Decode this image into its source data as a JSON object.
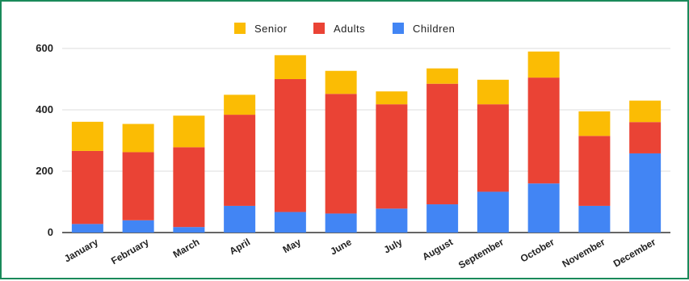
{
  "chart_data": {
    "type": "bar",
    "stacked": true,
    "categories": [
      "January",
      "February",
      "March",
      "April",
      "May",
      "June",
      "July",
      "August",
      "September",
      "October",
      "November",
      "December"
    ],
    "series": [
      {
        "name": "Children",
        "color": "#4285f4",
        "values": [
          28,
          40,
          18,
          87,
          67,
          62,
          78,
          92,
          133,
          160,
          87,
          258
        ]
      },
      {
        "name": "Adults",
        "color": "#ea4335",
        "values": [
          238,
          222,
          260,
          297,
          433,
          390,
          340,
          393,
          285,
          345,
          228,
          102
        ]
      },
      {
        "name": "Senior",
        "color": "#fbbc04",
        "values": [
          95,
          92,
          103,
          65,
          78,
          75,
          42,
          50,
          80,
          85,
          80,
          70
        ]
      }
    ],
    "legend_order": [
      "Senior",
      "Adults",
      "Children"
    ],
    "legend_position": "top",
    "ylim": [
      0,
      600
    ],
    "yticks": [
      0,
      200,
      400,
      600
    ],
    "grid": true,
    "title": "",
    "xlabel": "",
    "ylabel": ""
  }
}
